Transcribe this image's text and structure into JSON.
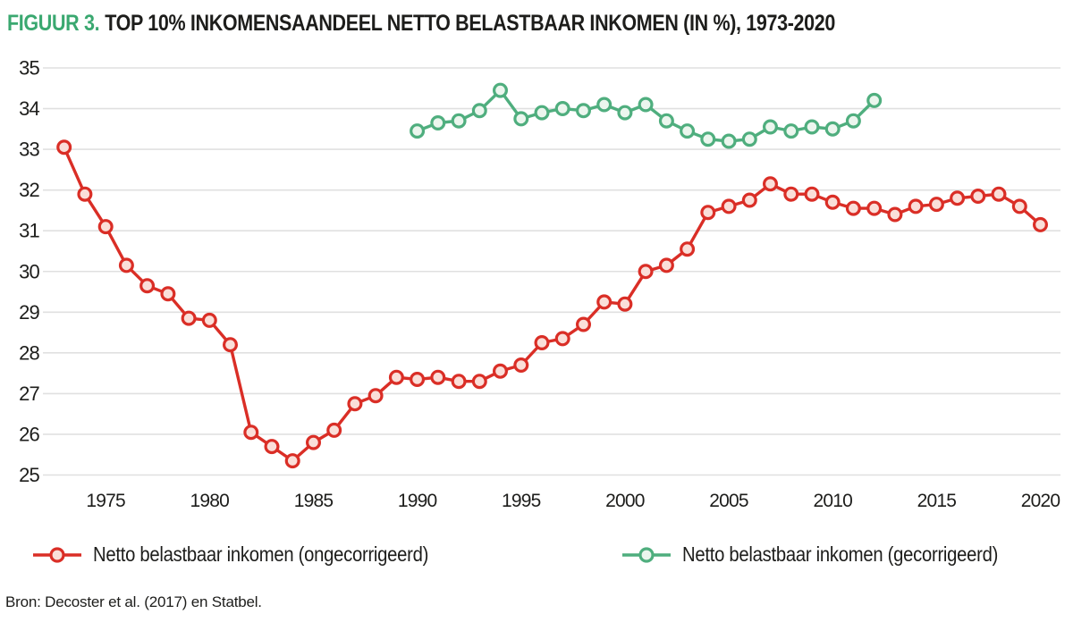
{
  "figure": {
    "label": "FIGUUR 3.",
    "title": "TOP 10% INKOMENSAANDEEL NETTO BELASTBAAR INKOMEN (IN %), 1973-2020",
    "source": "Bron: Decoster et al. (2017) en Statbel."
  },
  "colors": {
    "figure_label_green": "#3aa870",
    "text": "#1d1d1b",
    "gridline": "#e0e0e0",
    "background": "#ffffff"
  },
  "chart_data": {
    "type": "line",
    "title": "TOP 10% INKOMENSAANDEEL NETTO BELASTBAAR INKOMEN (IN %), 1973-2020",
    "xlabel": "",
    "ylabel": "",
    "ylim": [
      25,
      35
    ],
    "y_ticks": [
      25,
      26,
      27,
      28,
      29,
      30,
      31,
      32,
      33,
      34,
      35
    ],
    "x_ticks": [
      1975,
      1980,
      1985,
      1990,
      1995,
      2000,
      2005,
      2010,
      2015,
      2020
    ],
    "grid": "horizontal",
    "legend_position": "bottom",
    "marker": "circle",
    "series": [
      {
        "name": "Netto belastbaar inkomen (ongecorrigeerd)",
        "color": "#da2e26",
        "marker_fill": "#fadfd9",
        "years": [
          1973,
          1974,
          1975,
          1976,
          1977,
          1978,
          1979,
          1980,
          1981,
          1982,
          1983,
          1984,
          1985,
          1986,
          1987,
          1988,
          1989,
          1990,
          1991,
          1992,
          1993,
          1994,
          1995,
          1996,
          1997,
          1998,
          1999,
          2000,
          2001,
          2002,
          2003,
          2004,
          2005,
          2006,
          2007,
          2008,
          2009,
          2010,
          2011,
          2012,
          2013,
          2014,
          2015,
          2016,
          2017,
          2018,
          2019,
          2020
        ],
        "values": [
          33.05,
          31.9,
          31.1,
          30.15,
          29.65,
          29.45,
          28.85,
          28.8,
          28.2,
          26.05,
          25.7,
          25.35,
          25.8,
          26.1,
          26.75,
          26.95,
          27.4,
          27.35,
          27.4,
          27.3,
          27.3,
          27.55,
          27.7,
          28.25,
          28.35,
          28.7,
          29.25,
          29.2,
          30.0,
          30.15,
          30.55,
          31.45,
          31.6,
          31.75,
          32.15,
          31.9,
          31.9,
          31.7,
          31.55,
          31.55,
          31.4,
          31.6,
          31.65,
          31.8,
          31.85,
          31.9,
          31.6,
          31.15
        ]
      },
      {
        "name": "Netto belastbaar inkomen (gecorrigeerd)",
        "color": "#4fae7e",
        "marker_fill": "#ecf6ee",
        "years": [
          1990,
          1991,
          1992,
          1993,
          1994,
          1995,
          1996,
          1997,
          1998,
          1999,
          2000,
          2001,
          2002,
          2003,
          2004,
          2005,
          2006,
          2007,
          2008,
          2009,
          2010,
          2011,
          2012
        ],
        "values": [
          33.45,
          33.65,
          33.7,
          33.95,
          34.45,
          33.75,
          33.9,
          34.0,
          33.95,
          34.1,
          33.9,
          34.1,
          33.7,
          33.45,
          33.25,
          33.2,
          33.25,
          33.55,
          33.45,
          33.55,
          33.5,
          33.7,
          34.2
        ]
      }
    ]
  }
}
